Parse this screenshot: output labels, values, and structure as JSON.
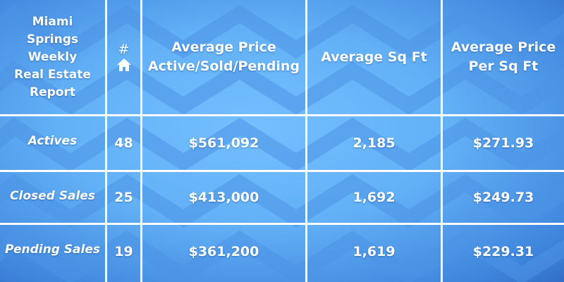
{
  "report": {
    "title": "Miami Springs Weekly Real Estate Report",
    "title_lines": [
      "Miami",
      "Springs",
      "Weekly",
      "Real Estate",
      "Report"
    ],
    "columns": {
      "count_symbol": "#",
      "count_icon": "home-icon",
      "avg_price_line1": "Average Price",
      "avg_price_line2": "Active/Sold/Pending",
      "avg_sqft": "Average Sq Ft",
      "avg_ppsf_line1": "Average Price",
      "avg_ppsf_line2": "Per Sq Ft"
    },
    "rows": [
      {
        "label": "Actives",
        "count": "48",
        "avg_price": "$561,092",
        "avg_sqft": "2,185",
        "price_per_sqft": "$271.93"
      },
      {
        "label": "Closed Sales",
        "count": "25",
        "avg_price": "$413,000",
        "avg_sqft": "1,692",
        "price_per_sqft": "$249.73"
      },
      {
        "label": "Pending Sales",
        "count": "19",
        "avg_price": "$361,200",
        "avg_sqft": "1,619",
        "price_per_sqft": "$229.31"
      }
    ]
  },
  "colors": {
    "background": "#62b0f6",
    "grid": "#ffffff",
    "text": "#ffffff"
  }
}
